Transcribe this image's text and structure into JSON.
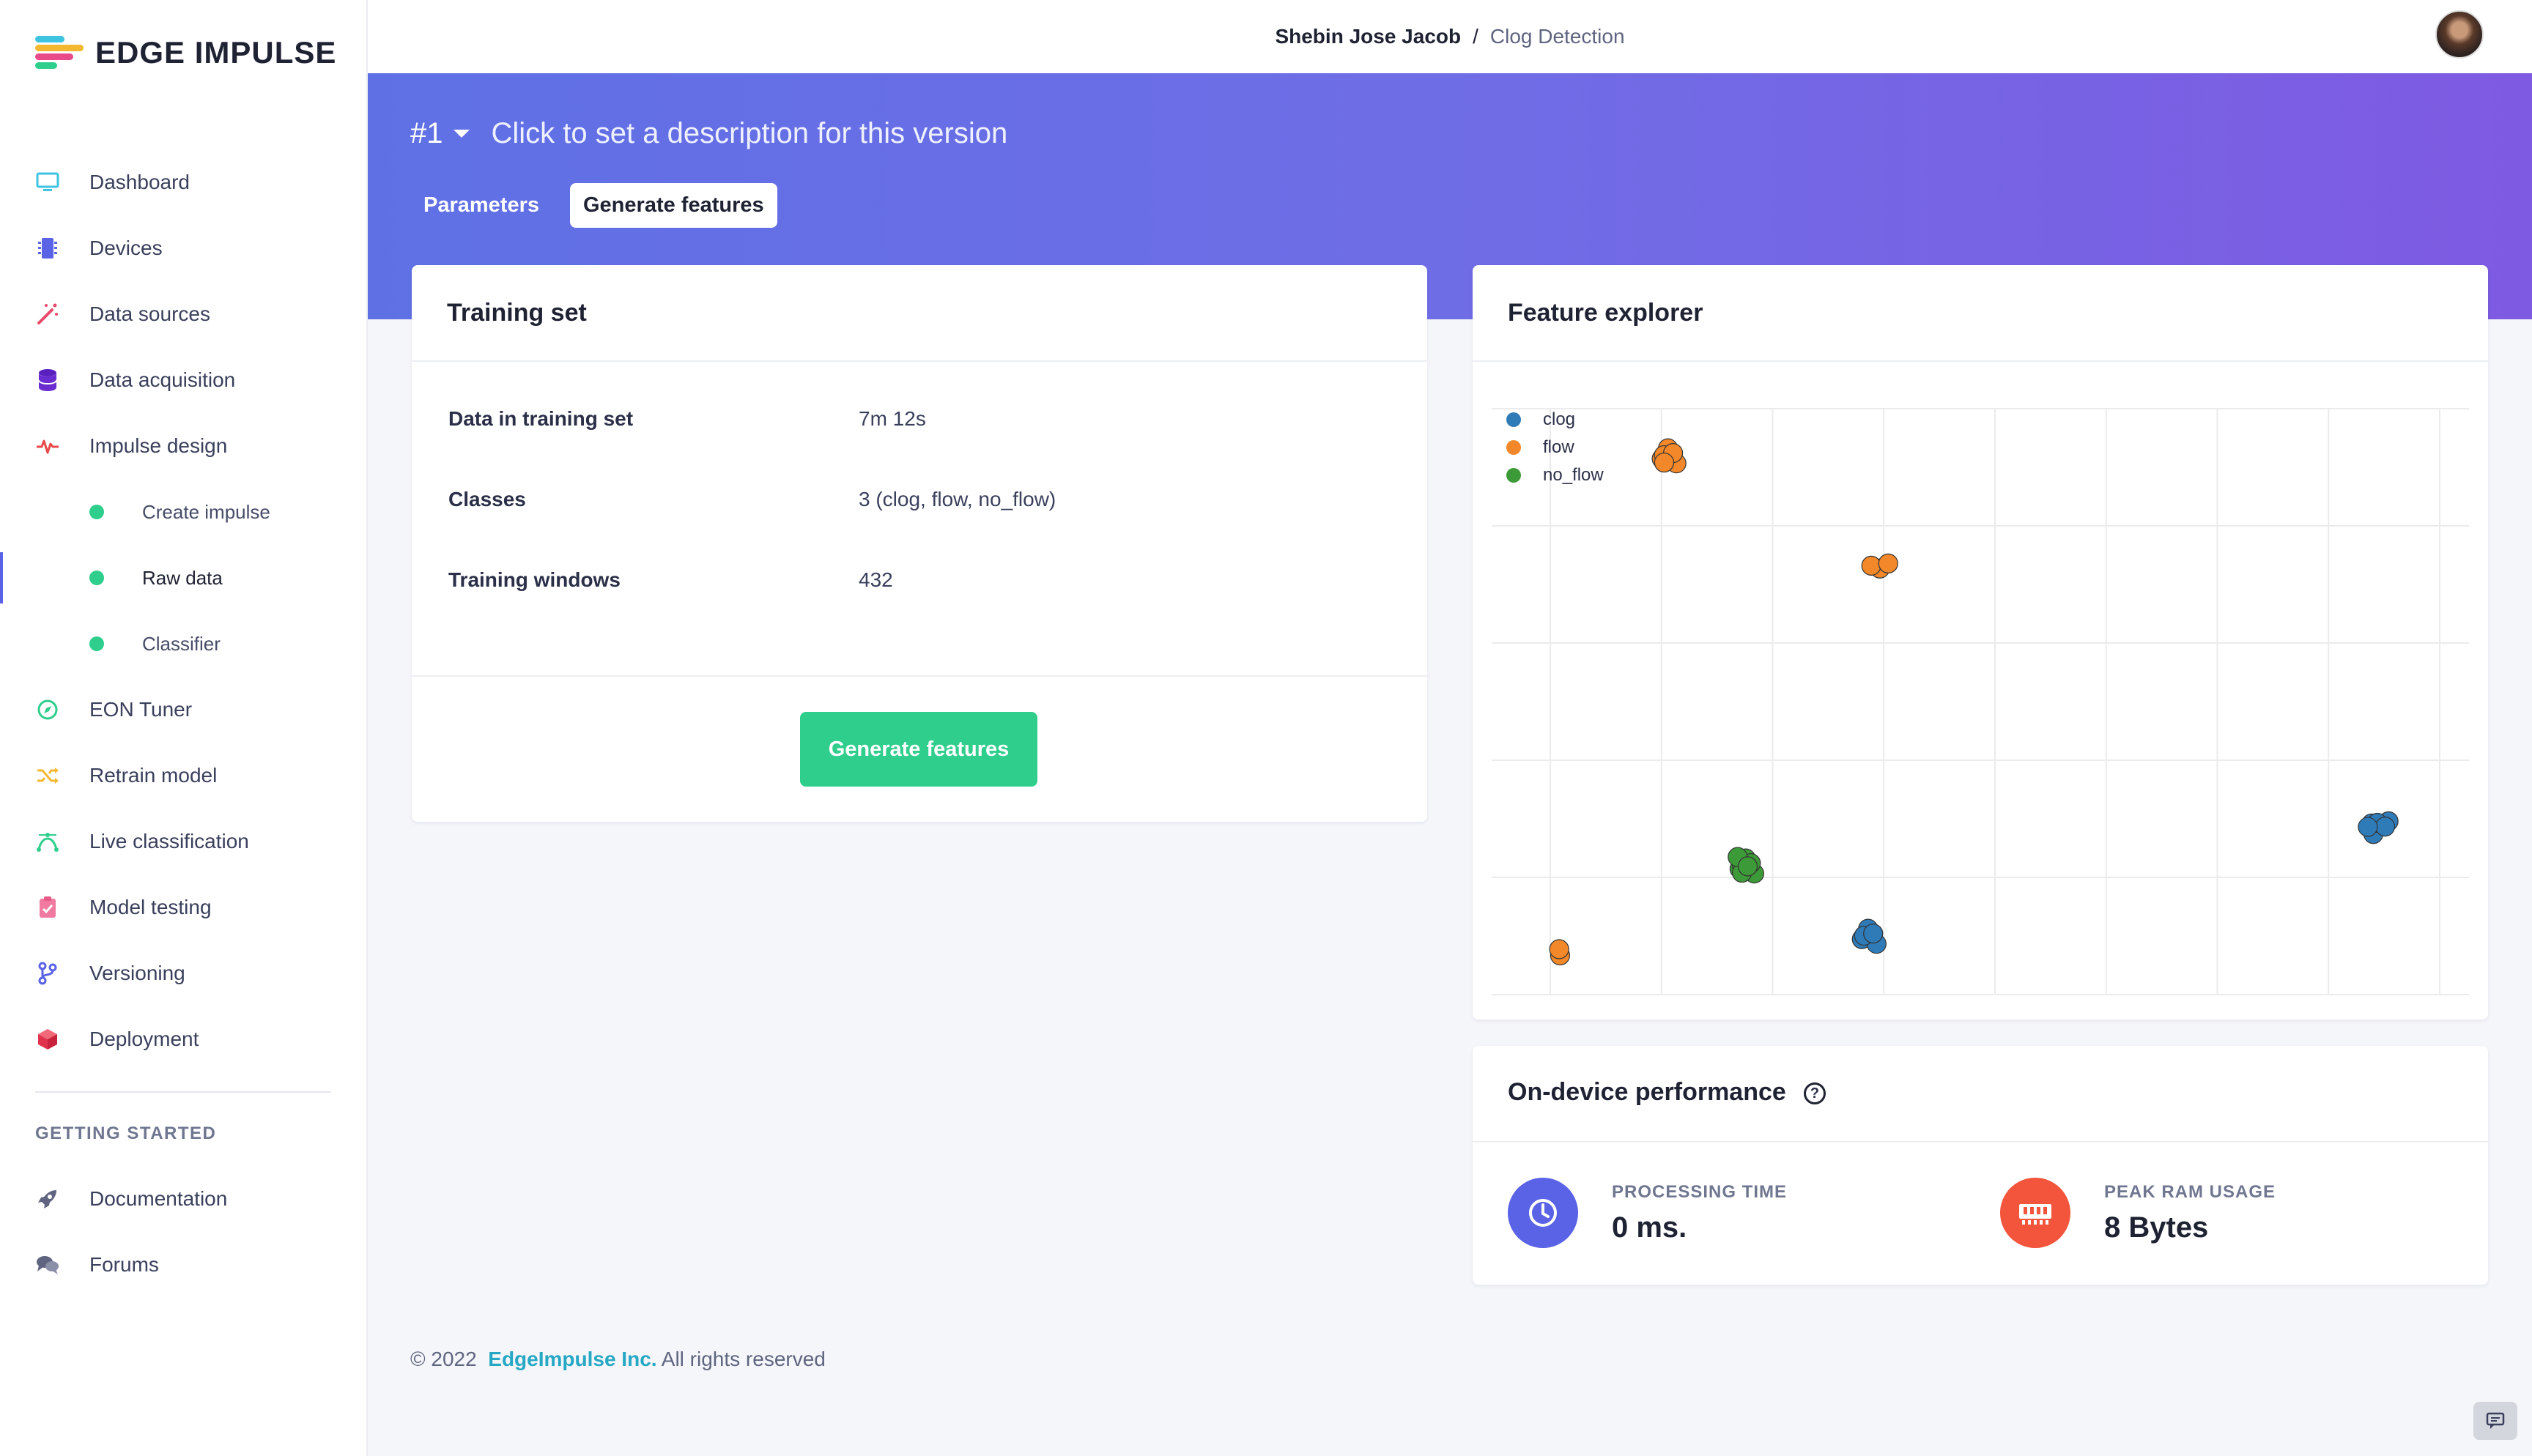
{
  "brand": {
    "name": "EDGE IMPULSE"
  },
  "sidebar": {
    "items": [
      {
        "label": "Dashboard",
        "icon": "monitor-icon"
      },
      {
        "label": "Devices",
        "icon": "chip-icon"
      },
      {
        "label": "Data sources",
        "icon": "magic-wand-icon"
      },
      {
        "label": "Data acquisition",
        "icon": "database-icon"
      },
      {
        "label": "Impulse design",
        "icon": "pulse-icon"
      }
    ],
    "sub_items": [
      {
        "label": "Create impulse"
      },
      {
        "label": "Raw data"
      },
      {
        "label": "Classifier"
      }
    ],
    "items_after": [
      {
        "label": "EON Tuner",
        "icon": "compass-icon"
      },
      {
        "label": "Retrain model",
        "icon": "shuffle-icon"
      },
      {
        "label": "Live classification",
        "icon": "bezier-icon"
      },
      {
        "label": "Model testing",
        "icon": "clipboard-check-icon"
      },
      {
        "label": "Versioning",
        "icon": "git-branch-icon"
      },
      {
        "label": "Deployment",
        "icon": "cube-icon"
      }
    ],
    "section_title": "GETTING STARTED",
    "getting_started": [
      {
        "label": "Documentation",
        "icon": "rocket-icon"
      },
      {
        "label": "Forums",
        "icon": "chat-bubbles-icon"
      }
    ]
  },
  "topbar": {
    "user": "Shebin Jose Jacob",
    "separator": "/",
    "project": "Clog Detection"
  },
  "hero": {
    "version": "#1",
    "description": "Click to set a description for this version",
    "tabs": [
      {
        "label": "Parameters"
      },
      {
        "label": "Generate features"
      }
    ]
  },
  "training_set": {
    "title": "Training set",
    "rows": [
      {
        "label": "Data in training set",
        "value": "7m 12s"
      },
      {
        "label": "Classes",
        "value": "3 (clog, flow, no_flow)"
      },
      {
        "label": "Training windows",
        "value": "432"
      }
    ],
    "button_label": "Generate features"
  },
  "feature_explorer": {
    "title": "Feature explorer",
    "chart_data": {
      "type": "scatter",
      "title": "",
      "xlabel": "",
      "ylabel": "",
      "xlim": [
        0,
        8
      ],
      "ylim": [
        0,
        5
      ],
      "grid": true,
      "legend": "top-left",
      "series": [
        {
          "name": "clog",
          "color": "#2f7bb8",
          "clusters": [
            {
              "x": 2.85,
              "y": 0.5,
              "n": 6
            },
            {
              "x": 7.45,
              "y": 1.45,
              "n": 7
            }
          ]
        },
        {
          "name": "flow",
          "color": "#f2882a",
          "clusters": [
            {
              "x": 1.05,
              "y": 4.6,
              "n": 7
            },
            {
              "x": 2.95,
              "y": 3.65,
              "n": 3
            },
            {
              "x": 0.1,
              "y": 0.35,
              "n": 2
            }
          ]
        },
        {
          "name": "no_flow",
          "color": "#3d9a38",
          "clusters": [
            {
              "x": 1.75,
              "y": 1.1,
              "n": 9
            }
          ]
        }
      ]
    }
  },
  "performance": {
    "title": "On-device performance",
    "processing": {
      "label": "PROCESSING TIME",
      "value": "0 ms."
    },
    "ram": {
      "label": "PEAK RAM USAGE",
      "value": "8 Bytes"
    }
  },
  "footer": {
    "year": "© 2022",
    "company": "EdgeImpulse Inc.",
    "rights": "All rights reserved"
  },
  "colors": {
    "accent": "#2fce8c",
    "hero_start": "#5f70e5",
    "hero_end": "#7e5ae2",
    "processing": "#5a63e6",
    "ram": "#f2553b"
  }
}
